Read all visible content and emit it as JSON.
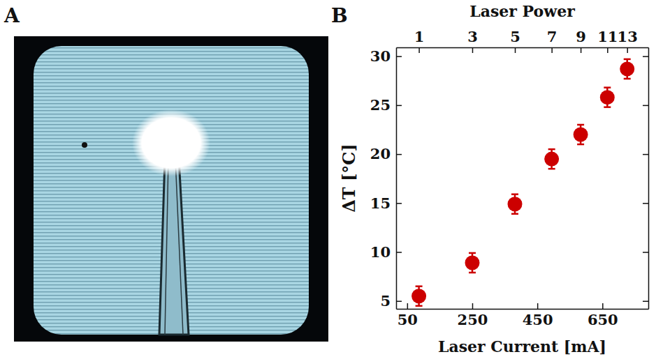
{
  "chart_data": {
    "type": "scatter",
    "panels": [
      "A",
      "B"
    ],
    "x_label": "Laser Current [mA]",
    "y_label": "ΔT [°C]",
    "x2_label": "Laser Power",
    "x": [
      86,
      250,
      381,
      494,
      583,
      665,
      726
    ],
    "values": [
      5.5,
      8.9,
      14.9,
      19.5,
      22.0,
      25.8,
      28.7
    ],
    "errors": [
      1.0,
      1.0,
      1.0,
      1.0,
      1.0,
      1.0,
      1.0
    ],
    "xlim": [
      16,
      791
    ],
    "xticks": [
      50,
      250,
      450,
      650
    ],
    "ylim": [
      4.2,
      30.9
    ],
    "yticks": [
      5,
      10,
      15,
      20,
      25,
      30
    ],
    "x2ticks": [
      {
        "value": 86,
        "label": "1"
      },
      {
        "value": 250,
        "label": "3"
      },
      {
        "value": 381,
        "label": "5"
      },
      {
        "value": 494,
        "label": "7"
      },
      {
        "value": 583,
        "label": "9"
      },
      {
        "value": 665,
        "label": "11"
      },
      {
        "value": 726,
        "label": "13"
      }
    ],
    "color": "#cc0000",
    "marker": "circle",
    "grid": false
  }
}
